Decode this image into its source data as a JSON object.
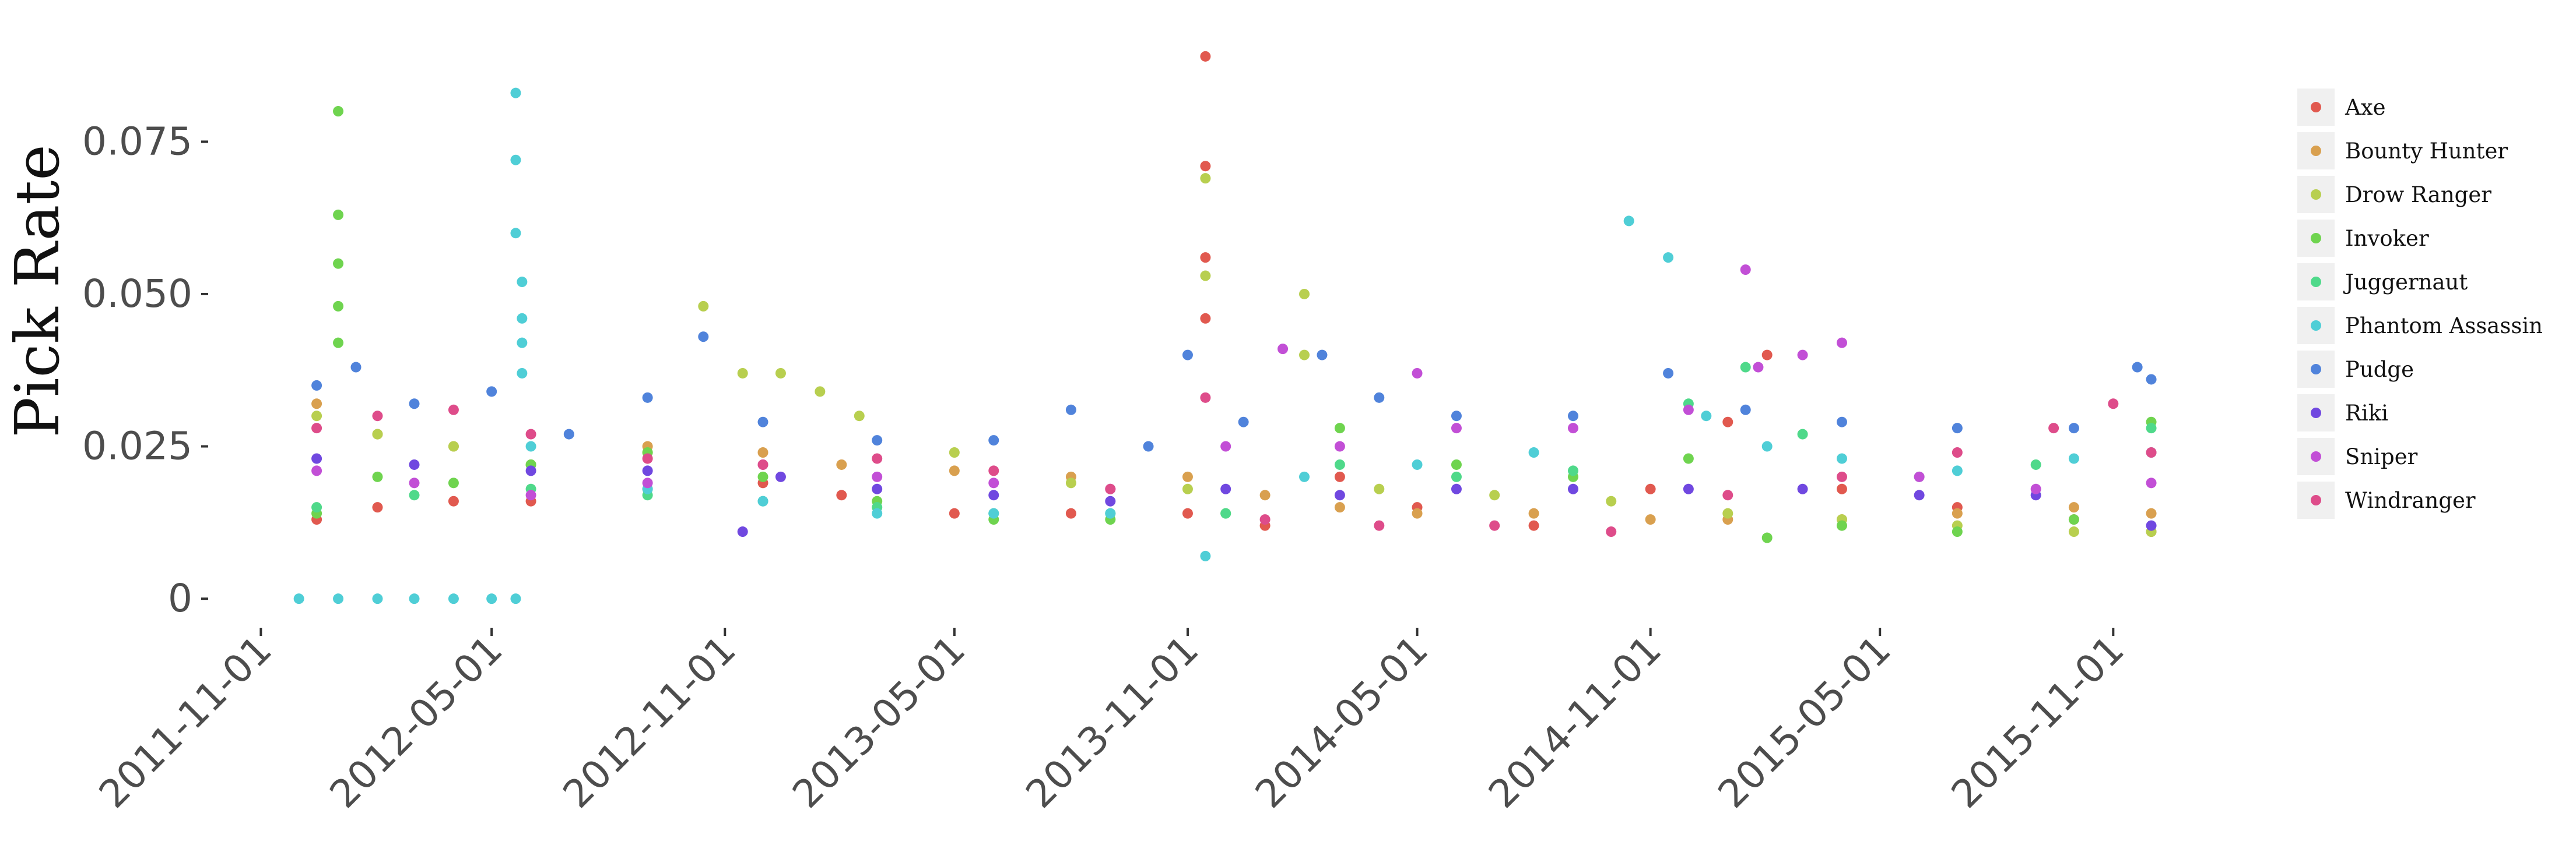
{
  "chart_data": {
    "type": "scatter",
    "title": "",
    "xlabel": "",
    "ylabel": "Pick Rate",
    "xlim": [
      "2011-10-01",
      "2015-12-15"
    ],
    "ylim": [
      -0.004,
      0.093
    ],
    "xticks": [
      "2011-11-01",
      "2012-05-01",
      "2012-11-01",
      "2013-05-01",
      "2013-11-01",
      "2014-05-01",
      "2014-11-01",
      "2015-05-01",
      "2015-11-01"
    ],
    "yticks": [
      {
        "value": 0,
        "label": "0"
      },
      {
        "value": 0.025,
        "label": "0.025"
      },
      {
        "value": 0.05,
        "label": "0.050"
      },
      {
        "value": 0.075,
        "label": "0.075"
      }
    ],
    "grid": false,
    "legend_position": "right",
    "series": [
      {
        "name": "Axe",
        "color": "#E1594F",
        "points": [
          [
            "2011-12-15",
            0.013
          ],
          [
            "2012-02-01",
            0.015
          ],
          [
            "2012-04-01",
            0.016
          ],
          [
            "2012-06-01",
            0.016
          ],
          [
            "2012-09-01",
            0.018
          ],
          [
            "2012-12-01",
            0.019
          ],
          [
            "2013-02-01",
            0.017
          ],
          [
            "2013-05-01",
            0.014
          ],
          [
            "2013-08-01",
            0.014
          ],
          [
            "2013-11-01",
            0.014
          ],
          [
            "2013-11-15",
            0.089
          ],
          [
            "2013-11-15",
            0.071
          ],
          [
            "2013-11-15",
            0.056
          ],
          [
            "2013-11-15",
            0.046
          ],
          [
            "2014-01-01",
            0.012
          ],
          [
            "2014-03-01",
            0.02
          ],
          [
            "2014-05-01",
            0.015
          ],
          [
            "2014-08-01",
            0.012
          ],
          [
            "2014-11-01",
            0.018
          ],
          [
            "2015-01-01",
            0.029
          ],
          [
            "2015-02-01",
            0.04
          ],
          [
            "2015-04-01",
            0.018
          ],
          [
            "2015-07-01",
            0.015
          ],
          [
            "2015-10-01",
            0.013
          ],
          [
            "2015-12-01",
            0.011
          ]
        ]
      },
      {
        "name": "Bounty Hunter",
        "color": "#D9A04F",
        "points": [
          [
            "2011-12-15",
            0.032
          ],
          [
            "2012-02-01",
            0.027
          ],
          [
            "2012-04-01",
            0.025
          ],
          [
            "2012-06-01",
            0.022
          ],
          [
            "2012-09-01",
            0.025
          ],
          [
            "2012-12-01",
            0.024
          ],
          [
            "2013-02-01",
            0.022
          ],
          [
            "2013-05-01",
            0.021
          ],
          [
            "2013-08-01",
            0.02
          ],
          [
            "2013-11-01",
            0.02
          ],
          [
            "2014-01-01",
            0.017
          ],
          [
            "2014-03-01",
            0.015
          ],
          [
            "2014-05-01",
            0.014
          ],
          [
            "2014-08-01",
            0.014
          ],
          [
            "2014-11-01",
            0.013
          ],
          [
            "2015-01-01",
            0.013
          ],
          [
            "2015-04-01",
            0.013
          ],
          [
            "2015-07-01",
            0.014
          ],
          [
            "2015-10-01",
            0.015
          ],
          [
            "2015-12-01",
            0.014
          ]
        ]
      },
      {
        "name": "Drow Ranger",
        "color": "#B8CF4F",
        "points": [
          [
            "2011-12-15",
            0.03
          ],
          [
            "2012-02-01",
            0.027
          ],
          [
            "2012-04-01",
            0.025
          ],
          [
            "2012-06-01",
            0.022
          ],
          [
            "2012-09-01",
            0.024
          ],
          [
            "2012-10-15",
            0.048
          ],
          [
            "2012-11-15",
            0.037
          ],
          [
            "2012-12-15",
            0.037
          ],
          [
            "2013-01-15",
            0.034
          ],
          [
            "2013-02-15",
            0.03
          ],
          [
            "2013-05-01",
            0.024
          ],
          [
            "2013-08-01",
            0.019
          ],
          [
            "2013-11-01",
            0.018
          ],
          [
            "2013-11-15",
            0.069
          ],
          [
            "2013-11-15",
            0.053
          ],
          [
            "2014-02-01",
            0.05
          ],
          [
            "2014-02-01",
            0.04
          ],
          [
            "2014-04-01",
            0.018
          ],
          [
            "2014-07-01",
            0.017
          ],
          [
            "2014-10-01",
            0.016
          ],
          [
            "2015-01-01",
            0.014
          ],
          [
            "2015-04-01",
            0.013
          ],
          [
            "2015-07-01",
            0.012
          ],
          [
            "2015-10-01",
            0.011
          ],
          [
            "2015-12-01",
            0.011
          ]
        ]
      },
      {
        "name": "Invoker",
        "color": "#6FD44F",
        "points": [
          [
            "2011-12-15",
            0.014
          ],
          [
            "2012-01-01",
            0.08
          ],
          [
            "2012-01-01",
            0.063
          ],
          [
            "2012-01-01",
            0.055
          ],
          [
            "2012-01-01",
            0.048
          ],
          [
            "2012-01-01",
            0.042
          ],
          [
            "2012-02-01",
            0.02
          ],
          [
            "2012-04-01",
            0.019
          ],
          [
            "2012-06-01",
            0.022
          ],
          [
            "2012-09-01",
            0.024
          ],
          [
            "2012-12-01",
            0.02
          ],
          [
            "2013-03-01",
            0.016
          ],
          [
            "2013-06-01",
            0.013
          ],
          [
            "2013-09-01",
            0.013
          ],
          [
            "2013-12-01",
            0.014
          ],
          [
            "2014-03-01",
            0.028
          ],
          [
            "2014-06-01",
            0.022
          ],
          [
            "2014-09-01",
            0.02
          ],
          [
            "2014-12-01",
            0.023
          ],
          [
            "2015-02-01",
            0.01
          ],
          [
            "2015-04-01",
            0.012
          ],
          [
            "2015-07-01",
            0.011
          ],
          [
            "2015-10-01",
            0.013
          ],
          [
            "2015-12-01",
            0.029
          ]
        ]
      },
      {
        "name": "Juggernaut",
        "color": "#4FD98A",
        "points": [
          [
            "2011-12-15",
            0.015
          ],
          [
            "2012-03-01",
            0.017
          ],
          [
            "2012-06-01",
            0.018
          ],
          [
            "2012-09-01",
            0.017
          ],
          [
            "2012-12-01",
            0.016
          ],
          [
            "2013-03-01",
            0.015
          ],
          [
            "2013-06-01",
            0.014
          ],
          [
            "2013-09-01",
            0.014
          ],
          [
            "2013-12-01",
            0.014
          ],
          [
            "2014-03-01",
            0.022
          ],
          [
            "2014-06-01",
            0.02
          ],
          [
            "2014-09-01",
            0.021
          ],
          [
            "2014-12-01",
            0.032
          ],
          [
            "2015-01-15",
            0.038
          ],
          [
            "2015-03-01",
            0.027
          ],
          [
            "2015-06-01",
            0.02
          ],
          [
            "2015-09-01",
            0.022
          ],
          [
            "2015-12-01",
            0.028
          ]
        ]
      },
      {
        "name": "Phantom Assassin",
        "color": "#4FCED6",
        "points": [
          [
            "2011-12-01",
            0.0
          ],
          [
            "2012-01-01",
            0.0
          ],
          [
            "2012-02-01",
            0.0
          ],
          [
            "2012-03-01",
            0.0
          ],
          [
            "2012-04-01",
            0.0
          ],
          [
            "2012-05-01",
            0.0
          ],
          [
            "2012-05-20",
            0.0
          ],
          [
            "2012-05-20",
            0.083
          ],
          [
            "2012-05-20",
            0.072
          ],
          [
            "2012-05-20",
            0.06
          ],
          [
            "2012-05-25",
            0.052
          ],
          [
            "2012-05-25",
            0.046
          ],
          [
            "2012-05-25",
            0.042
          ],
          [
            "2012-05-25",
            0.037
          ],
          [
            "2012-06-01",
            0.025
          ],
          [
            "2012-09-01",
            0.018
          ],
          [
            "2012-12-01",
            0.016
          ],
          [
            "2013-03-01",
            0.014
          ],
          [
            "2013-06-01",
            0.014
          ],
          [
            "2013-09-01",
            0.014
          ],
          [
            "2013-11-15",
            0.007
          ],
          [
            "2014-02-01",
            0.02
          ],
          [
            "2014-05-01",
            0.022
          ],
          [
            "2014-08-01",
            0.024
          ],
          [
            "2014-10-15",
            0.062
          ],
          [
            "2014-11-15",
            0.056
          ],
          [
            "2014-12-15",
            0.03
          ],
          [
            "2015-02-01",
            0.025
          ],
          [
            "2015-04-01",
            0.023
          ],
          [
            "2015-07-01",
            0.021
          ],
          [
            "2015-10-01",
            0.023
          ],
          [
            "2015-12-01",
            0.024
          ]
        ]
      },
      {
        "name": "Pudge",
        "color": "#5083DB",
        "points": [
          [
            "2011-12-15",
            0.035
          ],
          [
            "2012-01-15",
            0.038
          ],
          [
            "2012-03-01",
            0.032
          ],
          [
            "2012-05-01",
            0.034
          ],
          [
            "2012-07-01",
            0.027
          ],
          [
            "2012-09-01",
            0.033
          ],
          [
            "2012-10-15",
            0.043
          ],
          [
            "2012-12-01",
            0.029
          ],
          [
            "2013-03-01",
            0.026
          ],
          [
            "2013-06-01",
            0.026
          ],
          [
            "2013-08-01",
            0.031
          ],
          [
            "2013-10-01",
            0.025
          ],
          [
            "2013-11-01",
            0.04
          ],
          [
            "2013-12-15",
            0.029
          ],
          [
            "2014-02-15",
            0.04
          ],
          [
            "2014-04-01",
            0.033
          ],
          [
            "2014-06-01",
            0.03
          ],
          [
            "2014-09-01",
            0.03
          ],
          [
            "2014-11-15",
            0.037
          ],
          [
            "2015-01-15",
            0.031
          ],
          [
            "2015-04-01",
            0.029
          ],
          [
            "2015-07-01",
            0.028
          ],
          [
            "2015-10-01",
            0.028
          ],
          [
            "2015-11-20",
            0.038
          ],
          [
            "2015-12-01",
            0.036
          ]
        ]
      },
      {
        "name": "Riki",
        "color": "#7048E0",
        "points": [
          [
            "2011-12-15",
            0.023
          ],
          [
            "2012-03-01",
            0.022
          ],
          [
            "2012-06-01",
            0.021
          ],
          [
            "2012-09-01",
            0.021
          ],
          [
            "2012-11-15",
            0.011
          ],
          [
            "2012-12-15",
            0.02
          ],
          [
            "2013-03-01",
            0.018
          ],
          [
            "2013-06-01",
            0.017
          ],
          [
            "2013-09-01",
            0.016
          ],
          [
            "2013-12-01",
            0.018
          ],
          [
            "2014-03-01",
            0.017
          ],
          [
            "2014-06-01",
            0.018
          ],
          [
            "2014-09-01",
            0.018
          ],
          [
            "2014-12-01",
            0.018
          ],
          [
            "2015-03-01",
            0.018
          ],
          [
            "2015-06-01",
            0.017
          ],
          [
            "2015-09-01",
            0.017
          ],
          [
            "2015-12-01",
            0.012
          ]
        ]
      },
      {
        "name": "Sniper",
        "color": "#C24FD6",
        "points": [
          [
            "2011-12-15",
            0.021
          ],
          [
            "2012-03-01",
            0.019
          ],
          [
            "2012-06-01",
            0.017
          ],
          [
            "2012-09-01",
            0.019
          ],
          [
            "2012-12-01",
            0.022
          ],
          [
            "2013-03-01",
            0.02
          ],
          [
            "2013-06-01",
            0.019
          ],
          [
            "2013-09-01",
            0.018
          ],
          [
            "2013-12-01",
            0.025
          ],
          [
            "2014-01-15",
            0.041
          ],
          [
            "2014-03-01",
            0.025
          ],
          [
            "2014-05-01",
            0.037
          ],
          [
            "2014-06-01",
            0.028
          ],
          [
            "2014-09-01",
            0.028
          ],
          [
            "2014-12-01",
            0.031
          ],
          [
            "2015-01-15",
            0.054
          ],
          [
            "2015-01-25",
            0.038
          ],
          [
            "2015-03-01",
            0.04
          ],
          [
            "2015-04-01",
            0.042
          ],
          [
            "2015-06-01",
            0.02
          ],
          [
            "2015-09-01",
            0.018
          ],
          [
            "2015-12-01",
            0.019
          ]
        ]
      },
      {
        "name": "Windranger",
        "color": "#DE4C8A",
        "points": [
          [
            "2011-12-15",
            0.028
          ],
          [
            "2012-02-01",
            0.03
          ],
          [
            "2012-04-01",
            0.031
          ],
          [
            "2012-06-01",
            0.027
          ],
          [
            "2012-09-01",
            0.023
          ],
          [
            "2012-12-01",
            0.022
          ],
          [
            "2013-03-01",
            0.023
          ],
          [
            "2013-06-01",
            0.021
          ],
          [
            "2013-09-01",
            0.018
          ],
          [
            "2013-11-15",
            0.033
          ],
          [
            "2014-01-01",
            0.013
          ],
          [
            "2014-04-01",
            0.012
          ],
          [
            "2014-07-01",
            0.012
          ],
          [
            "2014-10-01",
            0.011
          ],
          [
            "2015-01-01",
            0.017
          ],
          [
            "2015-04-01",
            0.02
          ],
          [
            "2015-07-01",
            0.024
          ],
          [
            "2015-09-15",
            0.028
          ],
          [
            "2015-11-01",
            0.032
          ],
          [
            "2015-12-01",
            0.024
          ]
        ]
      }
    ]
  }
}
